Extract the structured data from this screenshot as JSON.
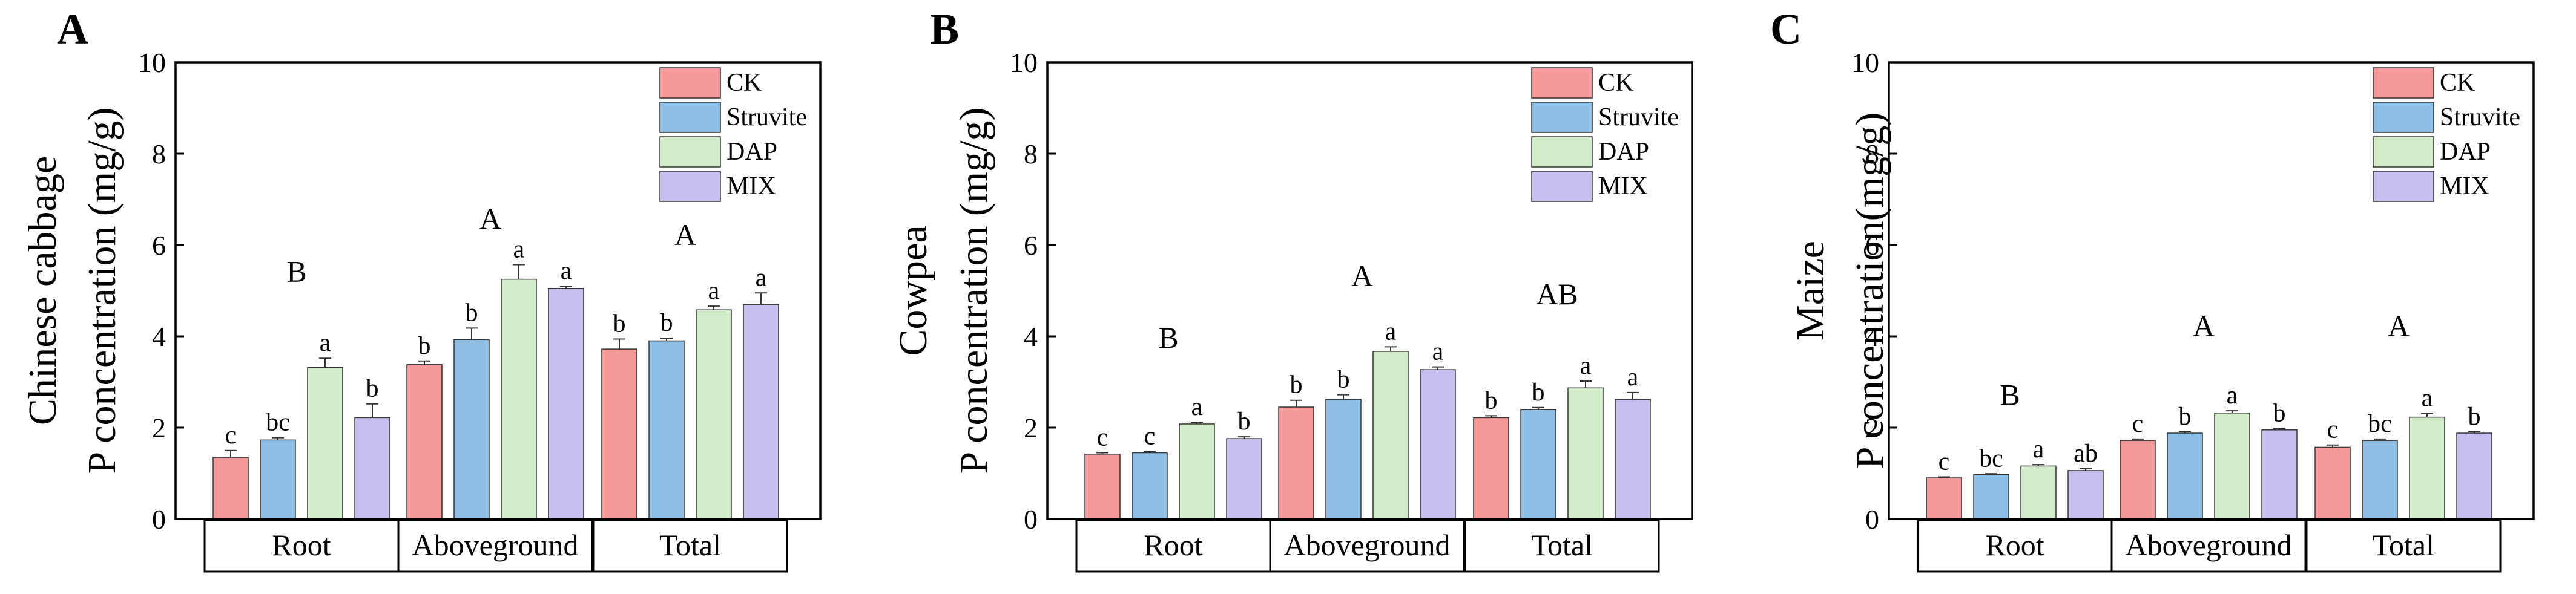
{
  "colors": {
    "CK": "#f4989a",
    "Struvite": "#8ebfe6",
    "DAP": "#d2ebc9",
    "MIX": "#c6bfed",
    "axis": "#000000"
  },
  "legend": [
    "CK",
    "Struvite",
    "DAP",
    "MIX"
  ],
  "chart_data": [
    {
      "type": "bar",
      "panel": "A",
      "ylabel_line1": "Chinese cabbage",
      "ylabel_line2": "P concentration (mg/g)",
      "ylim": [
        0,
        10
      ],
      "yticks": [
        0,
        2,
        4,
        6,
        8,
        10
      ],
      "categories": [
        "Root",
        "Aboveground",
        "Total"
      ],
      "overall_letters": [
        "B",
        "A",
        "A"
      ],
      "overall_letter_y": [
        5.2,
        6.35,
        6.0
      ],
      "series": [
        {
          "name": "CK",
          "values": [
            1.35,
            3.38,
            3.72
          ],
          "errors": [
            0.15,
            0.08,
            0.22
          ],
          "letters": [
            "c",
            "b",
            "b"
          ]
        },
        {
          "name": "Struvite",
          "values": [
            1.73,
            3.93,
            3.9
          ],
          "errors": [
            0.05,
            0.25,
            0.06
          ],
          "letters": [
            "bc",
            "b",
            "b"
          ]
        },
        {
          "name": "DAP",
          "values": [
            3.32,
            5.25,
            4.58
          ],
          "errors": [
            0.2,
            0.32,
            0.08
          ],
          "letters": [
            "a",
            "a",
            "a"
          ]
        },
        {
          "name": "MIX",
          "values": [
            2.22,
            5.05,
            4.7
          ],
          "errors": [
            0.3,
            0.05,
            0.25
          ],
          "letters": [
            "b",
            "a",
            "a"
          ]
        }
      ]
    },
    {
      "type": "bar",
      "panel": "B",
      "ylabel_line1": "Cowpea",
      "ylabel_line2": "P concentration (mg/g)",
      "ylim": [
        0,
        10
      ],
      "yticks": [
        0,
        2,
        4,
        6,
        8,
        10
      ],
      "categories": [
        "Root",
        "Aboveground",
        "Total"
      ],
      "overall_letters": [
        "B",
        "A",
        "AB"
      ],
      "overall_letter_y": [
        3.75,
        5.1,
        4.7
      ],
      "series": [
        {
          "name": "CK",
          "values": [
            1.42,
            2.45,
            2.22
          ],
          "errors": [
            0.03,
            0.15,
            0.04
          ],
          "letters": [
            "c",
            "b",
            "b"
          ]
        },
        {
          "name": "Struvite",
          "values": [
            1.45,
            2.62,
            2.4
          ],
          "errors": [
            0.03,
            0.1,
            0.04
          ],
          "letters": [
            "c",
            "b",
            "b"
          ]
        },
        {
          "name": "DAP",
          "values": [
            2.08,
            3.67,
            2.87
          ],
          "errors": [
            0.04,
            0.1,
            0.15
          ],
          "letters": [
            "a",
            "a",
            "a"
          ]
        },
        {
          "name": "MIX",
          "values": [
            1.76,
            3.27,
            2.62
          ],
          "errors": [
            0.04,
            0.06,
            0.15
          ],
          "letters": [
            "b",
            "a",
            "a"
          ]
        }
      ]
    },
    {
      "type": "bar",
      "panel": "C",
      "ylabel_line1": "Maize",
      "ylabel_line2": "P concentration(mg/g)",
      "ylim": [
        0,
        10
      ],
      "yticks": [
        0,
        2,
        4,
        6,
        8,
        10
      ],
      "categories": [
        "Root",
        "Aboveground",
        "Total"
      ],
      "overall_letters": [
        "B",
        "A",
        "A"
      ],
      "overall_letter_y": [
        2.5,
        4.0,
        4.0
      ],
      "series": [
        {
          "name": "CK",
          "values": [
            0.9,
            1.72,
            1.57
          ],
          "errors": [
            0.02,
            0.03,
            0.05
          ],
          "letters": [
            "c",
            "c",
            "c"
          ]
        },
        {
          "name": "Struvite",
          "values": [
            0.97,
            1.88,
            1.72
          ],
          "errors": [
            0.02,
            0.03,
            0.03
          ],
          "letters": [
            "bc",
            "b",
            "bc"
          ]
        },
        {
          "name": "DAP",
          "values": [
            1.16,
            2.32,
            2.23
          ],
          "errors": [
            0.03,
            0.05,
            0.08
          ],
          "letters": [
            "a",
            "a",
            "a"
          ]
        },
        {
          "name": "MIX",
          "values": [
            1.06,
            1.95,
            1.88
          ],
          "errors": [
            0.04,
            0.03,
            0.03
          ],
          "letters": [
            "ab",
            "b",
            "b"
          ]
        }
      ]
    }
  ]
}
